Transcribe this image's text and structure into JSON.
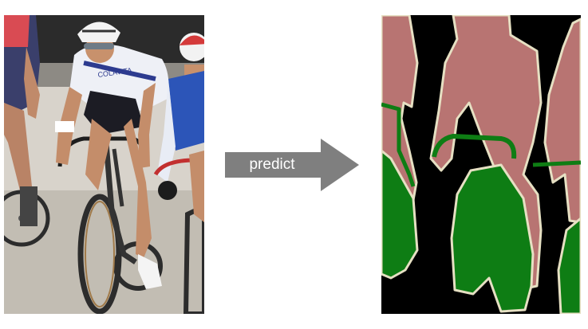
{
  "figure": {
    "arrow_label": "predict",
    "input_photo": {
      "description_name": "cyclists-photo",
      "jersey_text": [
        "COLAVITA",
        "COLAVITA"
      ]
    },
    "segmentation": {
      "description_name": "segmentation-mask",
      "colors": {
        "background": "#000000",
        "person": "#b87472",
        "bicycle": "#0e7d14",
        "boundary": "#e6e0c3"
      }
    },
    "colors": {
      "arrow": "#7f7f7f",
      "arrow_text": "#ffffff"
    }
  }
}
